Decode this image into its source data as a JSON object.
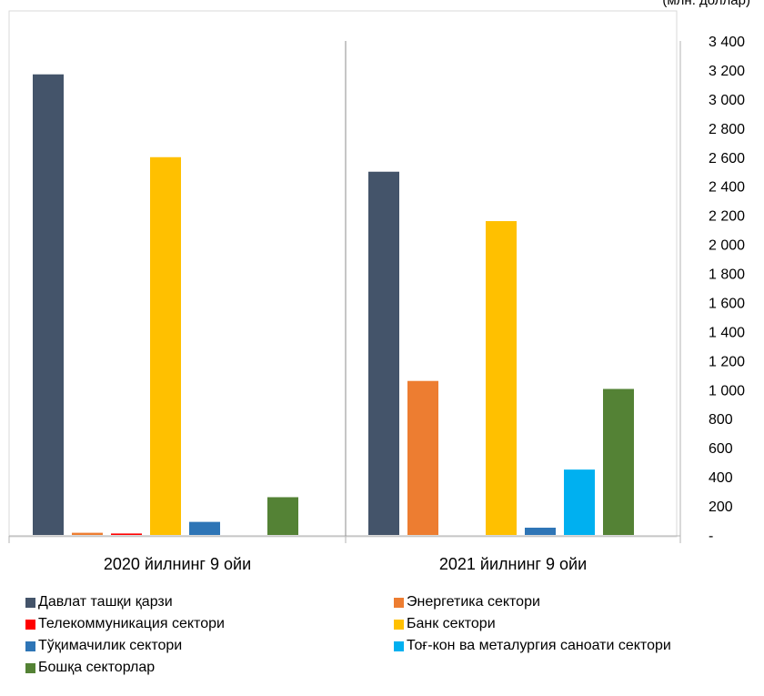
{
  "unit_label": "(млн. доллар)",
  "chart_data": {
    "type": "bar",
    "categories": [
      "2020 йилнинг 9 ойи",
      "2021 йилнинг 9 ойи"
    ],
    "ylim": [
      0,
      3400
    ],
    "y_ticks": [
      "-",
      "200",
      "400",
      "600",
      "800",
      "1 000",
      "1 200",
      "1 400",
      "1 600",
      "1 800",
      "2 000",
      "2 200",
      "2 400",
      "2 600",
      "2 800",
      "3 000",
      "3 200",
      "3 400"
    ],
    "y_axis_position": "right",
    "grid": false,
    "legend_position": "bottom",
    "series": [
      {
        "name": "Давлат ташқи қарзи",
        "color": "#44546A",
        "values": [
          3170,
          2500
        ]
      },
      {
        "name": "Энергетика сектори",
        "color": "#ED7D31",
        "values": [
          15,
          1060
        ]
      },
      {
        "name": "Телекоммуникация сектори",
        "color": "#FF0000",
        "values": [
          10,
          0
        ]
      },
      {
        "name": "Банк сектори",
        "color": "#FFC000",
        "values": [
          2600,
          2160
        ]
      },
      {
        "name": "Тўқимачилик сектори",
        "color": "#2E75B6",
        "values": [
          90,
          50
        ]
      },
      {
        "name": "Тоғ-кон ва металургия саноати сектори",
        "color": "#00B0F0",
        "values": [
          0,
          450
        ]
      },
      {
        "name": "Бошқа секторлар",
        "color": "#548235",
        "values": [
          260,
          1005
        ]
      }
    ]
  }
}
